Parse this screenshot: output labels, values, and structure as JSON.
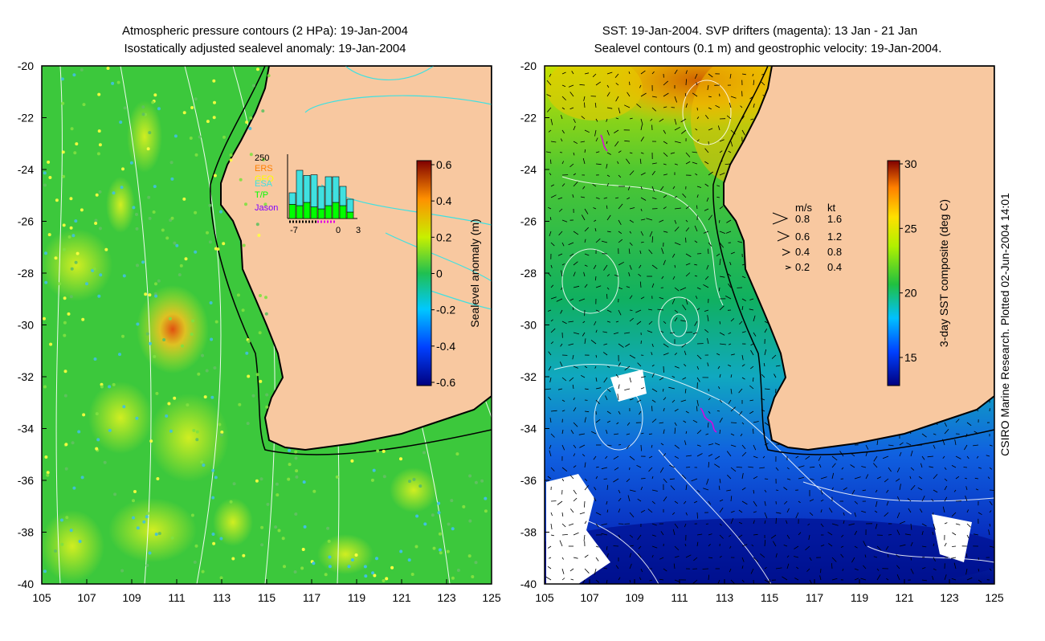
{
  "credit": "CSIRO Marine Research. Plotted 02-Jun-2004 14:01",
  "colors": {
    "land": "#f8c8a0",
    "coast": "#000000",
    "contour": "#ffffff",
    "drifter": "#e000e0",
    "isobath": "#40e0e0"
  },
  "panels": [
    {
      "name": "left",
      "title_line1": "Atmospheric pressure contours (2 HPa): 19-Jan-2004",
      "title_line2": "Isostatically adjusted sealevel anomaly: 19-Jan-2004",
      "x_ticks": [
        "105",
        "107",
        "109",
        "111",
        "113",
        "115",
        "117",
        "119",
        "121",
        "123",
        "125"
      ],
      "y_ticks": [
        "-20",
        "-22",
        "-24",
        "-26",
        "-28",
        "-30",
        "-32",
        "-34",
        "-36",
        "-38",
        "-40"
      ],
      "colorbar": {
        "label": "Sealevel anomaly (m)",
        "ticks": [
          "0.6",
          "0.4",
          "0.2",
          "0",
          "-0.2",
          "-0.4",
          "-0.6"
        ]
      },
      "inset": {
        "ymax_label": "250",
        "series_labels": [
          "ERS",
          "GFO",
          "ESA",
          "T/P",
          "Jason"
        ],
        "series_colors": [
          "#ff7f00",
          "#ffff00",
          "#40e0e0",
          "#00ff00",
          "#8000ff"
        ],
        "x_labels": [
          "-7",
          "0",
          "3"
        ],
        "bars": [
          {
            "cyan": 0.18,
            "green": 0.22
          },
          {
            "cyan": 0.55,
            "green": 0.2
          },
          {
            "cyan": 0.42,
            "green": 0.25
          },
          {
            "cyan": 0.5,
            "green": 0.18
          },
          {
            "cyan": 0.35,
            "green": 0.15
          },
          {
            "cyan": 0.45,
            "green": 0.2
          },
          {
            "cyan": 0.4,
            "green": 0.25
          },
          {
            "cyan": 0.3,
            "green": 0.2
          },
          {
            "cyan": 0.2,
            "green": 0.1
          }
        ]
      }
    },
    {
      "name": "right",
      "title_line1": "SST: 19-Jan-2004. SVP drifters (magenta): 13 Jan - 21 Jan",
      "title_line2": "Sealevel contours (0.1 m) and geostrophic velocity: 19-Jan-2004.",
      "x_ticks": [
        "105",
        "107",
        "109",
        "111",
        "113",
        "115",
        "117",
        "119",
        "121",
        "123",
        "125"
      ],
      "y_ticks": [
        "-20",
        "-22",
        "-24",
        "-26",
        "-28",
        "-30",
        "-32",
        "-34",
        "-36",
        "-38",
        "-40"
      ],
      "colorbar": {
        "label": "3-day SST composite (deg C)",
        "ticks": [
          "30",
          "25",
          "20",
          "15"
        ]
      },
      "velocity_legend": {
        "header_ms": "m/s",
        "header_kt": "kt",
        "rows": [
          {
            "ms": "0.8",
            "kt": "1.6"
          },
          {
            "ms": "0.6",
            "kt": "1.2"
          },
          {
            "ms": "0.4",
            "kt": "0.8"
          },
          {
            "ms": "0.2",
            "kt": "0.4"
          }
        ]
      }
    }
  ]
}
